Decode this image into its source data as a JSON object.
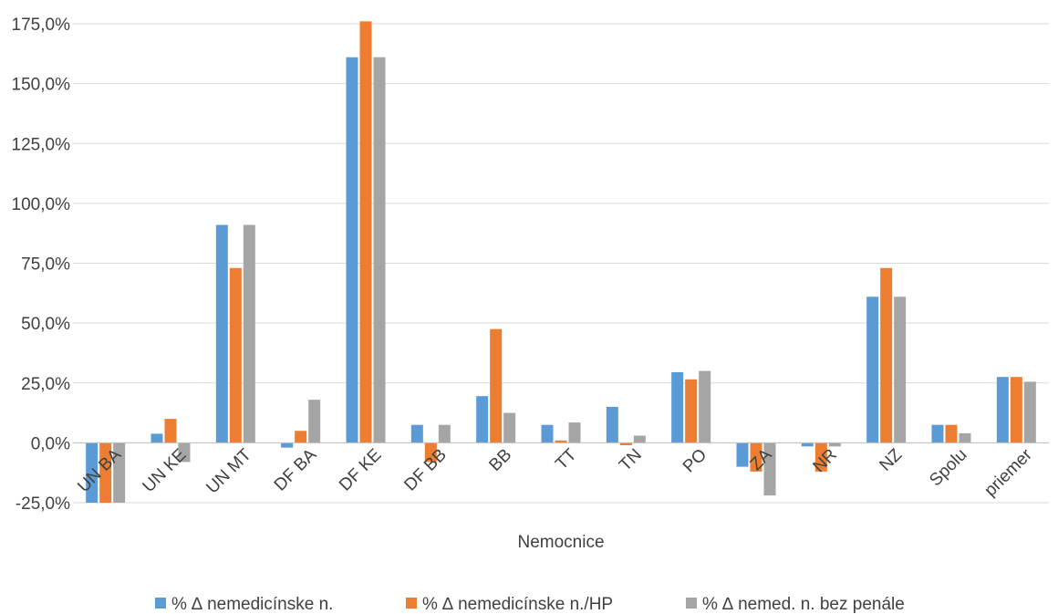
{
  "chart_data": {
    "type": "bar",
    "title": "",
    "xlabel": "Nemocnice",
    "ylabel": "",
    "ylim": [
      -25,
      175
    ],
    "y_ticks": [
      "-25,0%",
      "0,0%",
      "25,0%",
      "50,0%",
      "75,0%",
      "100,0%",
      "125,0%",
      "150,0%",
      "175,0%"
    ],
    "grid": true,
    "legend_position": "bottom",
    "categories": [
      "UN BA",
      "UN KE",
      "UN MT",
      "DF BA",
      "DF KE",
      "DF BB",
      "BB",
      "TT",
      "TN",
      "PO",
      "ZA",
      "NR",
      "NZ",
      "Spolu",
      "priemer"
    ],
    "series": [
      {
        "name": "% ∆ nemedicínske n.",
        "color": "#5b9bd5",
        "values": [
          -26,
          3.8,
          91,
          -2,
          161,
          7.5,
          19.5,
          7.5,
          15,
          29.5,
          -10,
          -1.5,
          61,
          7.5,
          27.5
        ]
      },
      {
        "name": "% ∆ nemedicínske n./HP",
        "color": "#ed7d31",
        "values": [
          -26,
          10,
          73,
          5,
          176,
          -8,
          47.5,
          1,
          -1,
          26.5,
          -12,
          -12,
          73,
          7.5,
          27.5
        ]
      },
      {
        "name": "% ∆ nemed. n. bez penále",
        "color": "#a5a5a5",
        "values": [
          -26,
          -8,
          91,
          18,
          161,
          7.5,
          12.5,
          8.5,
          3,
          30,
          -22,
          -1.5,
          61,
          4,
          25.5
        ]
      }
    ]
  }
}
